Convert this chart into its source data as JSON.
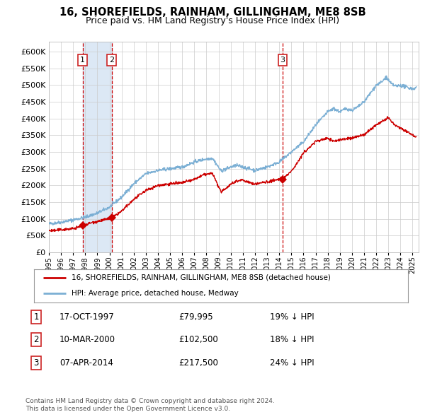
{
  "title": "16, SHOREFIELDS, RAINHAM, GILLINGHAM, ME8 8SB",
  "subtitle": "Price paid vs. HM Land Registry's House Price Index (HPI)",
  "title_fontsize": 10.5,
  "subtitle_fontsize": 9,
  "background_color": "#ffffff",
  "plot_bg_color": "#ffffff",
  "grid_color": "#cccccc",
  "legend_line1": "16, SHOREFIELDS, RAINHAM, GILLINGHAM, ME8 8SB (detached house)",
  "legend_line2": "HPI: Average price, detached house, Medway",
  "hpi_color": "#7bafd4",
  "price_color": "#cc0000",
  "sale_marker_color": "#cc0000",
  "annotation_box_color": "#cc2222",
  "vline_color": "#cc0000",
  "vline_shade_color": "#dce8f5",
  "footer1": "Contains HM Land Registry data © Crown copyright and database right 2024.",
  "footer2": "This data is licensed under the Open Government Licence v3.0.",
  "sales": [
    {
      "label": "1",
      "date_str": "17-OCT-1997",
      "date_x": 1997.79,
      "price": 79995,
      "pct": "19%",
      "direction": "↓"
    },
    {
      "label": "2",
      "date_str": "10-MAR-2000",
      "date_x": 2000.19,
      "price": 102500,
      "pct": "18%",
      "direction": "↓"
    },
    {
      "label": "3",
      "date_str": "07-APR-2014",
      "date_x": 2014.27,
      "price": 217500,
      "pct": "24%",
      "direction": "↓"
    }
  ],
  "ylim": [
    0,
    630000
  ],
  "yticks": [
    0,
    50000,
    100000,
    150000,
    200000,
    250000,
    300000,
    350000,
    400000,
    450000,
    500000,
    550000,
    600000
  ],
  "xlim": [
    1995,
    2025.5
  ]
}
